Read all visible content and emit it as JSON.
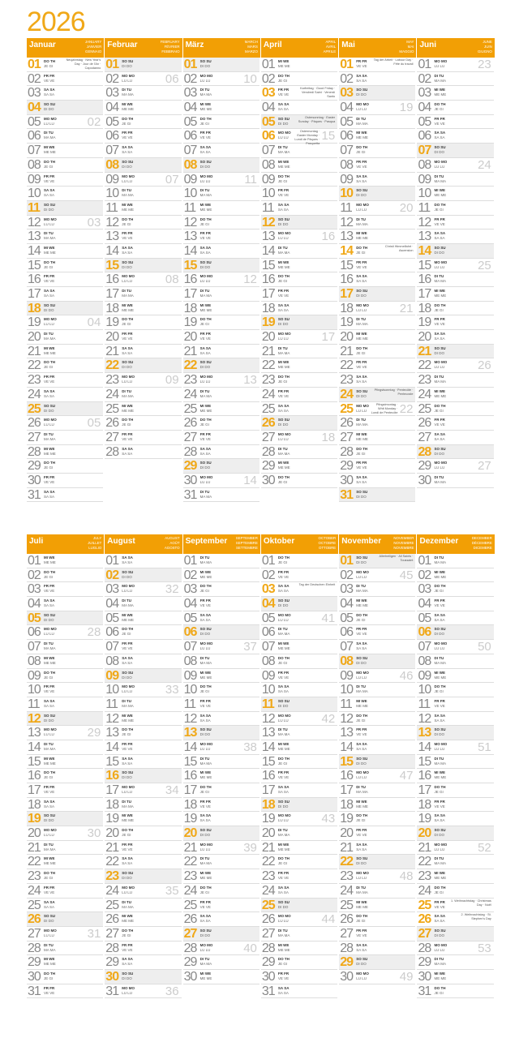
{
  "year": "2026",
  "accent": "#f29f05",
  "weekdays_top": [
    "MO MO",
    "DI TU",
    "MI WE",
    "DO TH",
    "FR FR",
    "SA SA",
    "SO SU"
  ],
  "weekdays_bottom": [
    "LU LU",
    "MA MA",
    "ME ME",
    "JE GI",
    "VE VE",
    "SA SA",
    "DI DO"
  ],
  "first_weekday_jan1": "DO",
  "months": [
    {
      "name": "Januar",
      "alt": [
        "JANUARY",
        "JANVIER",
        "GENNAIO"
      ],
      "days": 31
    },
    {
      "name": "Februar",
      "alt": [
        "FEBRUARY",
        "FÉVRIER",
        "FEBBRAIO"
      ],
      "days": 28
    },
    {
      "name": "März",
      "alt": [
        "MARCH",
        "MARS",
        "MARZO"
      ],
      "days": 31
    },
    {
      "name": "April",
      "alt": [
        "APRIL",
        "AVRIL",
        "APRILE"
      ],
      "days": 30
    },
    {
      "name": "Mai",
      "alt": [
        "MAY",
        "MAI",
        "MAGGIO"
      ],
      "days": 31
    },
    {
      "name": "Juni",
      "alt": [
        "JUNE",
        "JUIN",
        "GIUGNO"
      ],
      "days": 30
    },
    {
      "name": "Juli",
      "alt": [
        "JULY",
        "JUILLET",
        "LUGLIO"
      ],
      "days": 31
    },
    {
      "name": "August",
      "alt": [
        "AUGUST",
        "AOÛT",
        "AGOSTO"
      ],
      "days": 31
    },
    {
      "name": "September",
      "alt": [
        "SEPTEMBER",
        "SEPTEMBRE",
        "SETTEMBRE"
      ],
      "days": 30
    },
    {
      "name": "Oktober",
      "alt": [
        "OCTOBER",
        "OCTOBRE",
        "OTTOBRE"
      ],
      "days": 31
    },
    {
      "name": "November",
      "alt": [
        "NOVEMBER",
        "NOVEMBRE",
        "NOVEMBRE"
      ],
      "days": 30
    },
    {
      "name": "Dezember",
      "alt": [
        "DECEMBER",
        "DÉCEMBRE",
        "DICEMBRE"
      ],
      "days": 31
    }
  ],
  "holidays": [
    {
      "m": 1,
      "d": 1,
      "red": true,
      "note": "Neujahrstag · New Year's Day · Jour de l'An · Capodanno"
    },
    {
      "m": 4,
      "d": 3,
      "red": true,
      "note": "Karfreitag · Good Friday · Vendredi Saint · Venerdì Santo"
    },
    {
      "m": 4,
      "d": 5,
      "red": true,
      "note": "Ostersonntag · Easter Sunday · Pâques · Pasqua"
    },
    {
      "m": 4,
      "d": 6,
      "red": true,
      "note": "Ostermontag · Easter Monday · Lundi de Pâques · Pasquetta"
    },
    {
      "m": 5,
      "d": 1,
      "red": true,
      "note": "Tag der Arbeit · Labour Day · Fête du travail"
    },
    {
      "m": 5,
      "d": 14,
      "red": true,
      "note": "Christi Himmelfahrt · Ascension"
    },
    {
      "m": 5,
      "d": 24,
      "red": true,
      "note": "Pfingstsonntag · Pentecôte · Pentecoste"
    },
    {
      "m": 5,
      "d": 25,
      "red": true,
      "note": "Pfingstmontag · Whit Monday · Lundi de Pentecôte"
    },
    {
      "m": 10,
      "d": 3,
      "red": true,
      "note": "Tag der Deutschen Einheit"
    },
    {
      "m": 11,
      "d": 1,
      "red": true,
      "note": "Allerheiligen · All Saints · Toussaint"
    },
    {
      "m": 12,
      "d": 25,
      "red": true,
      "note": "1. Weihnachtstag · Christmas Day · Noël"
    },
    {
      "m": 12,
      "d": 26,
      "red": true,
      "note": "2. Weihnachtstag · St. Stephen's Day"
    }
  ]
}
